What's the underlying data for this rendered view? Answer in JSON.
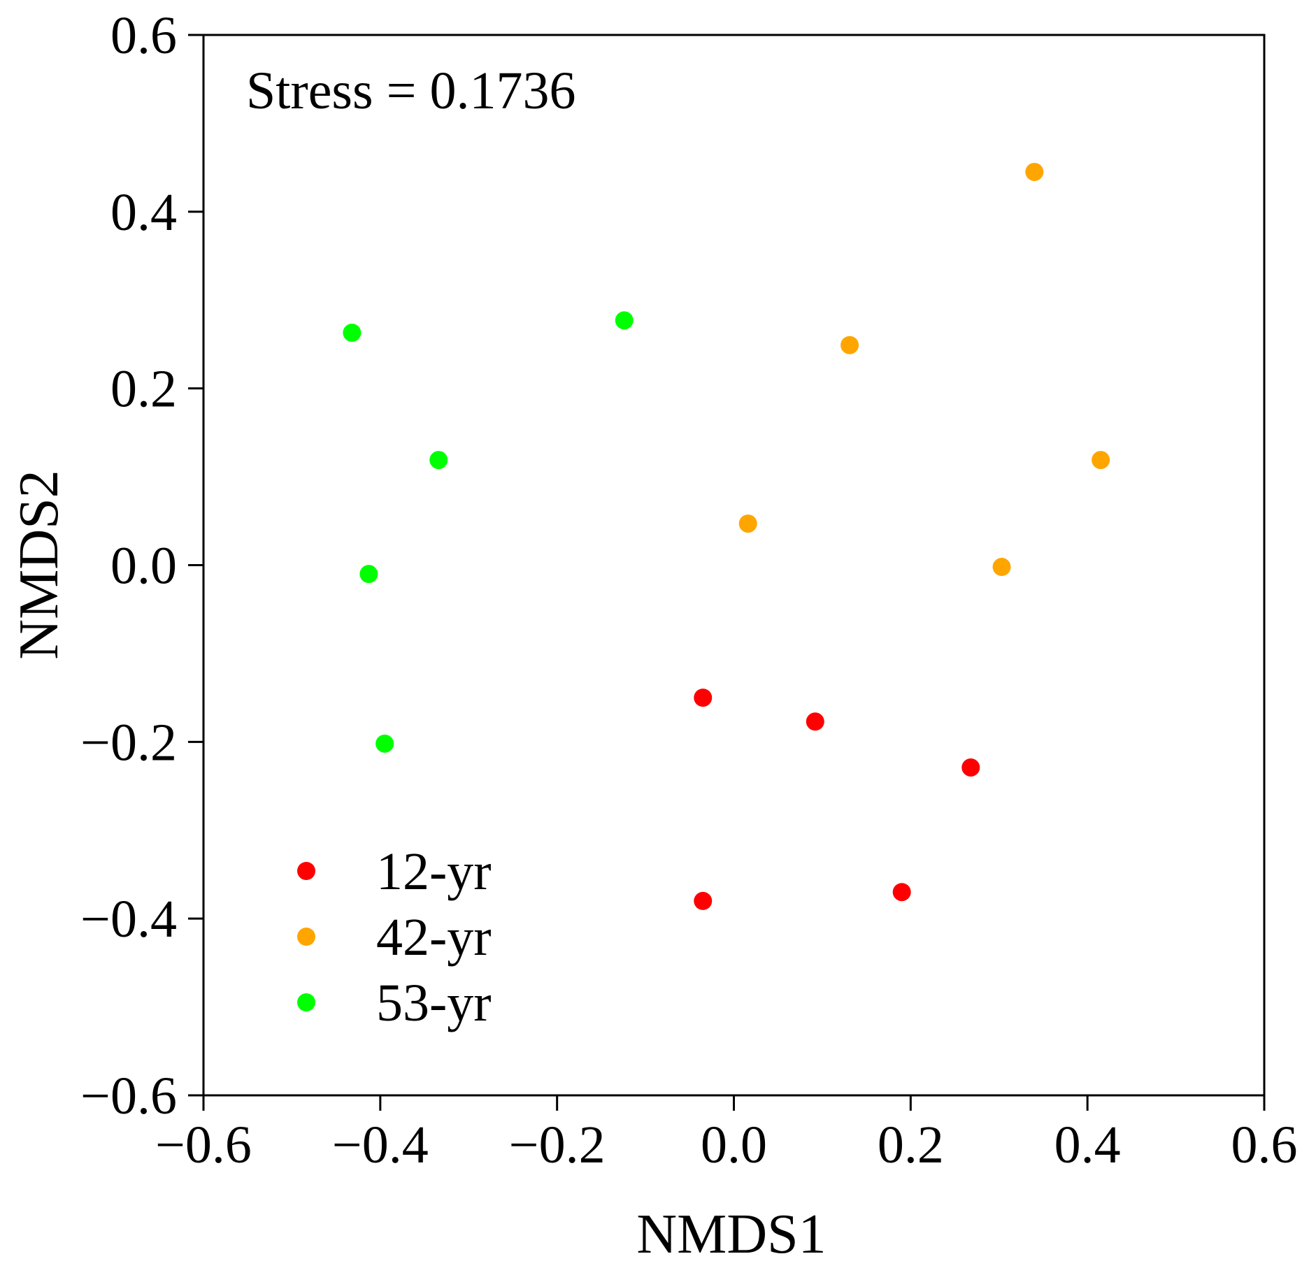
{
  "chart_data": {
    "type": "scatter",
    "title": "",
    "xlabel": "NMDS1",
    "ylabel": "NMDS2",
    "xlim": [
      -0.6,
      0.6
    ],
    "ylim": [
      -0.6,
      0.6
    ],
    "x_ticks": [
      -0.6,
      -0.4,
      -0.2,
      0.0,
      0.2,
      0.4,
      0.6
    ],
    "y_ticks": [
      -0.6,
      -0.4,
      -0.2,
      0.0,
      0.2,
      0.4,
      0.6
    ],
    "x_tick_labels": [
      "−0.6",
      "−0.4",
      "−0.2",
      "0.0",
      "0.2",
      "0.4",
      "0.6"
    ],
    "y_tick_labels": [
      "−0.6",
      "−0.4",
      "−0.2",
      "0.0",
      "0.2",
      "0.4",
      "0.6"
    ],
    "grid": false,
    "legend_position": "bottom-left",
    "annotation": "Stress = 0.1736",
    "series": [
      {
        "name": "12-yr",
        "color": "#ff0000",
        "points": [
          {
            "x": -0.035,
            "y": -0.15
          },
          {
            "x": 0.092,
            "y": -0.177
          },
          {
            "x": 0.268,
            "y": -0.229
          },
          {
            "x": 0.19,
            "y": -0.37
          },
          {
            "x": -0.035,
            "y": -0.38
          }
        ]
      },
      {
        "name": "42-yr",
        "color": "#ffa500",
        "points": [
          {
            "x": 0.34,
            "y": 0.445
          },
          {
            "x": 0.131,
            "y": 0.249
          },
          {
            "x": 0.415,
            "y": 0.119
          },
          {
            "x": 0.016,
            "y": 0.047
          },
          {
            "x": 0.303,
            "y": -0.002
          }
        ]
      },
      {
        "name": "53-yr",
        "color": "#00ff00",
        "points": [
          {
            "x": -0.432,
            "y": 0.263
          },
          {
            "x": -0.124,
            "y": 0.277
          },
          {
            "x": -0.334,
            "y": 0.119
          },
          {
            "x": -0.413,
            "y": -0.01
          },
          {
            "x": -0.395,
            "y": -0.202
          }
        ]
      }
    ]
  }
}
